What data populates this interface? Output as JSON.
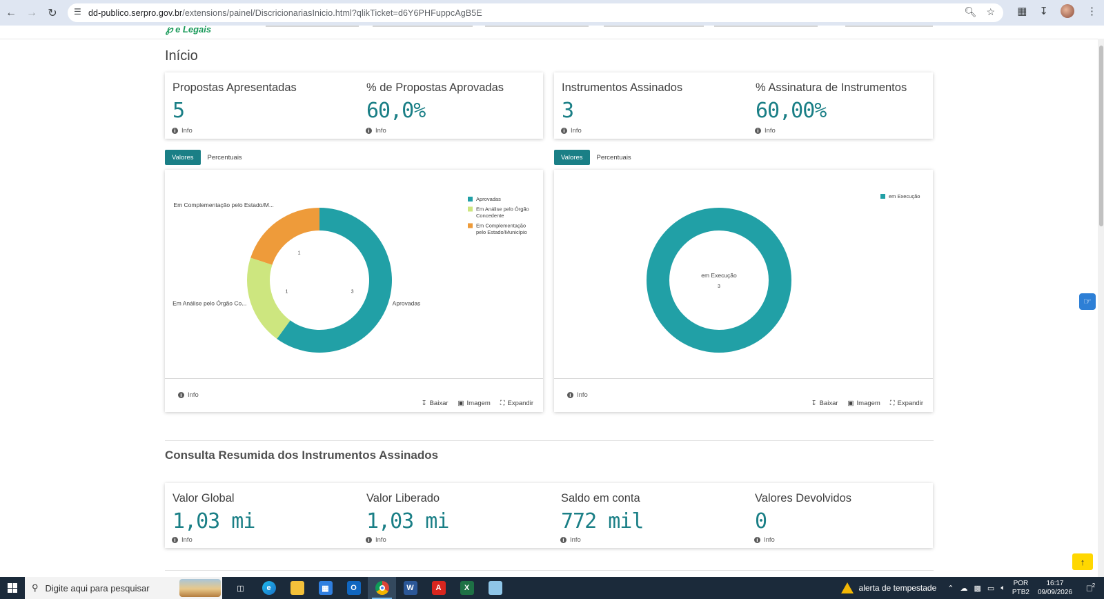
{
  "browser": {
    "url_host": "dd-publico.serpro.gov.br",
    "url_path": "/extensions/painel/DiscricionariasInicio.html?qlikTicket=d6Y6PHFuppcAgB5E"
  },
  "logo": {
    "text": "e Legais"
  },
  "page": {
    "title": "Início",
    "summary_title": "Consulta Resumida dos Instrumentos Assinados"
  },
  "kpis_top": [
    {
      "label": "Propostas Apresentadas",
      "value": "5",
      "info": "Info"
    },
    {
      "label": "% de Propostas Aprovadas",
      "value": "60,0%",
      "info": "Info"
    },
    {
      "label": "Instrumentos Assinados",
      "value": "3",
      "info": "Info"
    },
    {
      "label": "% Assinatura de Instrumentos",
      "value": "60,00%",
      "info": "Info"
    }
  ],
  "tabs": {
    "values": "Valores",
    "percent": "Percentuais"
  },
  "chart_actions": {
    "info": "Info",
    "download": "Baixar",
    "image": "Imagem",
    "expand": "Expandir"
  },
  "chart_data": [
    {
      "type": "pie",
      "donut": true,
      "categories": [
        "Aprovadas",
        "Em Análise pelo Órgão Concedente",
        "Em Complementação pelo Estado/Município"
      ],
      "values": [
        3,
        1,
        1
      ],
      "colors": [
        "#21a0a6",
        "#cde67f",
        "#ee9b3a"
      ],
      "outside_labels": [
        "Aprovadas",
        "Em Análise pelo Órgão Co...",
        "Em Complementação pelo Estado/M..."
      ],
      "legend": [
        {
          "lines": [
            "Aprovadas"
          ],
          "color": "#21a0a6"
        },
        {
          "lines": [
            "Em Análise pelo Órgão",
            "Concedente"
          ],
          "color": "#cde67f"
        },
        {
          "lines": [
            "Em Complementação",
            "pelo Estado/Município"
          ],
          "color": "#ee9b3a"
        }
      ],
      "legend_position": "top-right"
    },
    {
      "type": "pie",
      "donut": true,
      "categories": [
        "em Execução"
      ],
      "values": [
        3
      ],
      "colors": [
        "#21a0a6"
      ],
      "center_label": "em Execução",
      "center_value": "3",
      "legend": [
        {
          "lines": [
            "em Execução"
          ],
          "color": "#21a0a6"
        }
      ],
      "legend_position": "top-right"
    }
  ],
  "kpis_bottom": [
    {
      "label": "Valor Global",
      "value": "1,03 mi",
      "info": "Info"
    },
    {
      "label": "Valor Liberado",
      "value": "1,03 mi",
      "info": "Info"
    },
    {
      "label": "Saldo em conta",
      "value": "772 mil",
      "info": "Info"
    },
    {
      "label": "Valores Devolvidos",
      "value": "0",
      "info": "Info"
    }
  ],
  "taskbar": {
    "search_placeholder": "Digite aqui para pesquisar",
    "alert": "alerta de tempestade",
    "lang_top": "POR",
    "lang_bottom": "PTB2",
    "time": "16:17",
    "date": "09/09/2026",
    "notifications": "2"
  }
}
